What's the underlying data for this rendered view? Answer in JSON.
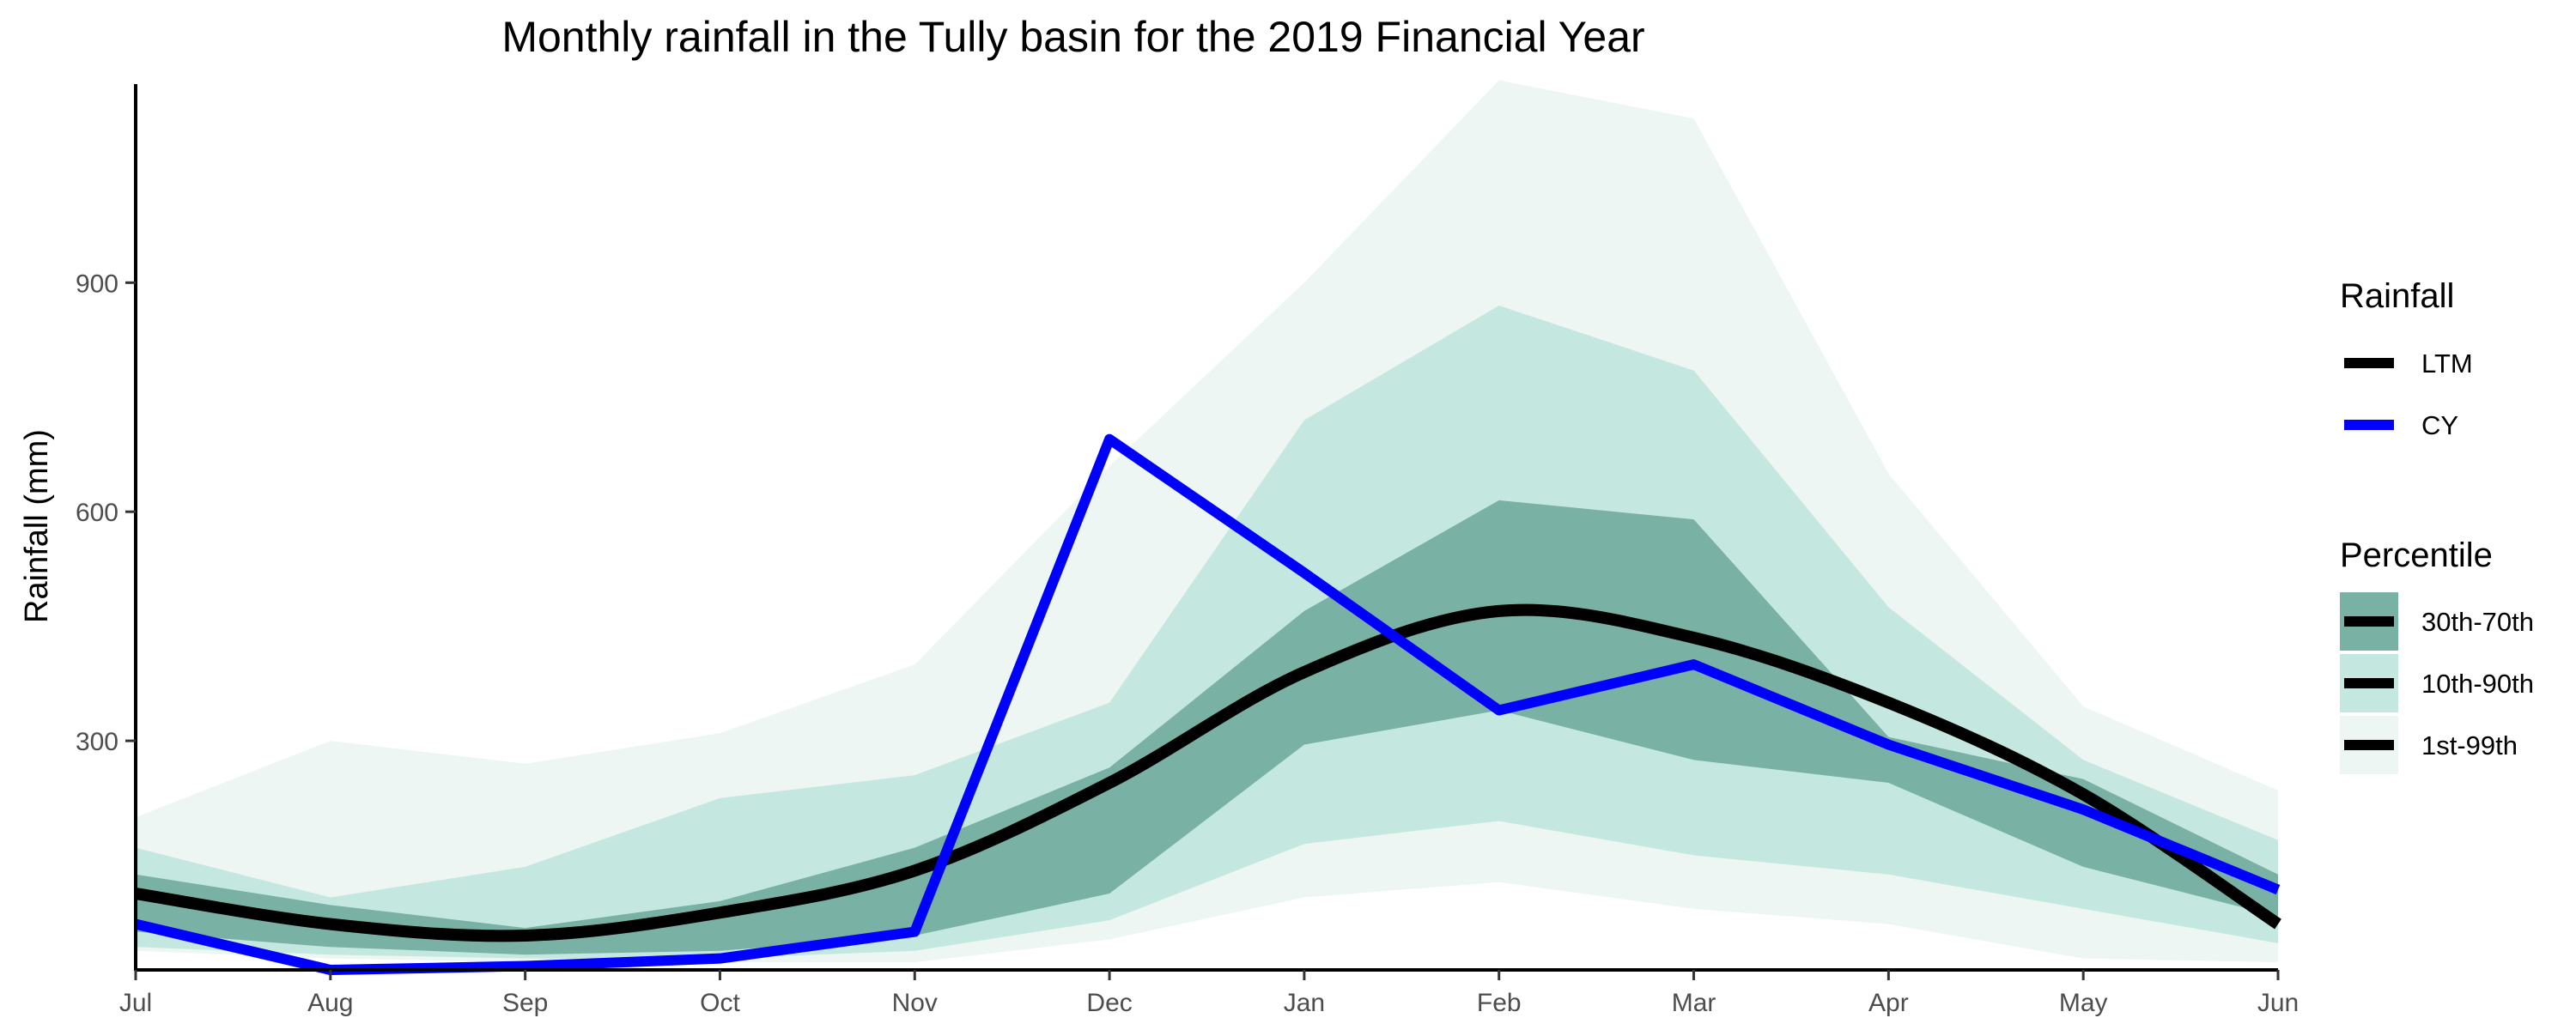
{
  "chart_data": {
    "type": "line",
    "title": "Monthly rainfall in the Tully basin for the 2019 Financial Year",
    "xlabel": "",
    "ylabel": "Rainfall (mm)",
    "categories": [
      "Jul",
      "Aug",
      "Sep",
      "Oct",
      "Nov",
      "Dec",
      "Jan",
      "Feb",
      "Mar",
      "Apr",
      "May",
      "Jun"
    ],
    "ylim": [
      0,
      1160
    ],
    "yticks": [
      300,
      600,
      900
    ],
    "grid": false,
    "series": [
      {
        "name": "LTM",
        "color": "#000000",
        "values": [
          100,
          60,
          45,
          75,
          130,
          245,
          390,
          470,
          435,
          350,
          230,
          60
        ]
      },
      {
        "name": "CY",
        "color": "#0000ff",
        "values": [
          60,
          0,
          5,
          15,
          50,
          695,
          520,
          340,
          400,
          295,
          210,
          105
        ]
      }
    ],
    "bands": [
      {
        "name": "1st-99th",
        "color": "#edf6f3",
        "low": [
          25,
          15,
          10,
          10,
          10,
          40,
          95,
          115,
          80,
          60,
          15,
          10
        ],
        "high": [
          200,
          300,
          270,
          310,
          400,
          660,
          900,
          1165,
          1115,
          650,
          345,
          235
        ]
      },
      {
        "name": "10th-90th",
        "color": "#c4e8df",
        "low": [
          30,
          20,
          15,
          15,
          25,
          65,
          165,
          195,
          150,
          125,
          80,
          35
        ],
        "high": [
          160,
          95,
          135,
          225,
          255,
          350,
          720,
          870,
          785,
          475,
          275,
          170
        ]
      },
      {
        "name": "30th-70th",
        "color": "#79b1a5",
        "low": [
          50,
          30,
          20,
          25,
          45,
          100,
          295,
          340,
          275,
          245,
          135,
          70
        ],
        "high": [
          125,
          85,
          55,
          90,
          160,
          265,
          470,
          615,
          590,
          305,
          250,
          125
        ]
      }
    ],
    "legend": {
      "placement": "right",
      "line_title": "Rainfall",
      "band_title": "Percentile",
      "line_entries": [
        "LTM",
        "CY"
      ],
      "band_entries": [
        "30th-70th",
        "10th-90th",
        "1st-99th"
      ]
    }
  }
}
